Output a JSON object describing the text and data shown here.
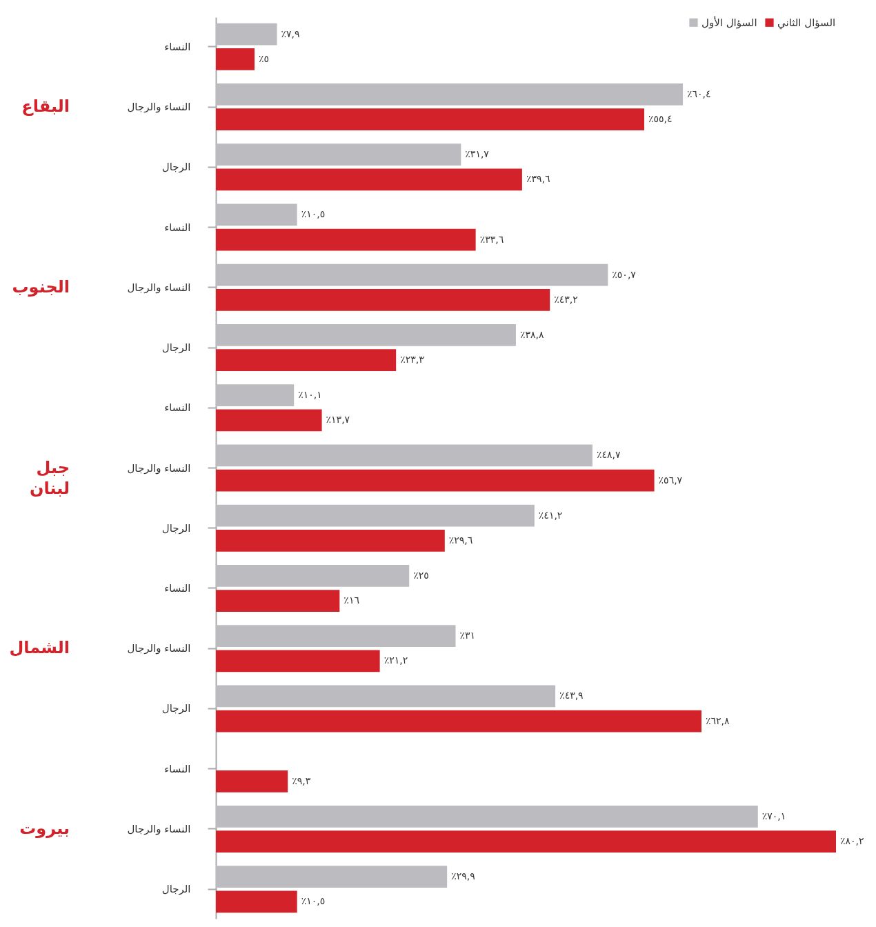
{
  "chart_data": {
    "type": "bar",
    "orientation": "horizontal",
    "legend": "top right",
    "categories": [
      "النساء",
      "النساء والرجال",
      "الرجال",
      "النساء",
      "النساء والرجال",
      "الرجال",
      "النساء",
      "النساء والرجال",
      "الرجال",
      "النساء",
      "النساء والرجال",
      "الرجال",
      "النساء",
      "النساء والرجال",
      "الرجال"
    ],
    "annotations": [
      "البقاع",
      "الجنوب",
      "جبل لبنان",
      "الشمال",
      "بيروت"
    ],
    "series": [
      {
        "name": "السؤال الأول",
        "color": "#bcbcc0",
        "values": [
          7.9,
          60.4,
          31.7,
          10.5,
          50.7,
          38.8,
          10.1,
          48.7,
          41.2,
          25,
          31,
          43.9,
          null,
          70.1,
          29.9
        ],
        "value_labels": [
          "٪٧,٩",
          "٪٦٠,٤",
          "٪٣١,٧",
          "٪١٠,٥",
          "٪٥٠,٧",
          "٪٣٨,٨",
          "٪١٠,١",
          "٪٤٨,٧",
          "٪٤١,٢",
          "٪٢٥",
          "٪٣١",
          "٪٤٣,٩",
          null,
          "٪٧٠,١",
          "٪٢٩,٩"
        ]
      },
      {
        "name": "السؤال الثاني",
        "color": "#d3222a",
        "values": [
          5,
          55.4,
          39.6,
          33.6,
          43.2,
          23.3,
          13.7,
          56.7,
          29.6,
          16,
          21.2,
          62.8,
          9.3,
          80.2,
          10.5
        ],
        "value_labels": [
          "٪٥",
          "٪٥٥,٤",
          "٪٣٩,٦",
          "٪٣٣,٦",
          "٪٤٣,٢",
          "٪٢٣,٣",
          "٪١٣,٧",
          "٪٥٦,٧",
          "٪٢٩,٦",
          "٪١٦",
          "٪٢١,٢",
          "٪٦٢,٨",
          "٪٩,٣",
          "٪٨٠,٢",
          "٪١٠,٥"
        ]
      }
    ]
  }
}
